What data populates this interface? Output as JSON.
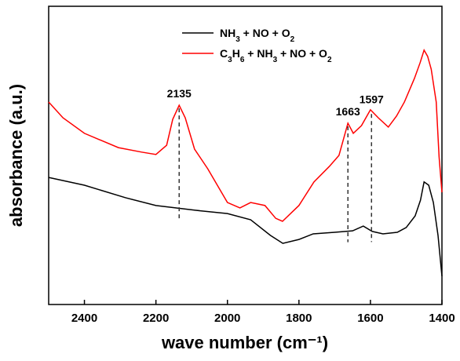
{
  "chart_data": {
    "type": "line",
    "xlabel": "wave number (cm⁻¹)",
    "ylabel": "absorbance (a.u.)",
    "xlim": [
      2500,
      1400
    ],
    "xticks": [
      2400,
      2200,
      2000,
      1800,
      1600,
      1400
    ],
    "ylim": [
      0,
      100
    ],
    "legend": "upper center",
    "annotations": [
      2135,
      1663,
      1597
    ],
    "series": [
      {
        "name": "NH3 + NO + O2",
        "color": "#000000",
        "x": [
          2500,
          2400,
          2285,
          2200,
          2090,
          2000,
          1935,
          1880,
          1845,
          1800,
          1760,
          1700,
          1650,
          1620,
          1595,
          1565,
          1525,
          1500,
          1475,
          1460,
          1450,
          1437,
          1424,
          1411,
          1400
        ],
        "values": [
          42.6,
          40.0,
          35.8,
          33.2,
          31.6,
          30.5,
          28.4,
          23.2,
          20.5,
          21.8,
          23.7,
          24.2,
          24.7,
          26.3,
          24.5,
          23.7,
          24.2,
          25.8,
          29.7,
          35.0,
          41.1,
          40.0,
          34.2,
          23.2,
          9.5
        ]
      },
      {
        "name": "C3H6 + NH3 + NO + O2",
        "color": "#ff0000",
        "x": [
          2500,
          2460,
          2400,
          2305,
          2240,
          2200,
          2170,
          2153,
          2135,
          2118,
          2092,
          2055,
          2000,
          1965,
          1935,
          1895,
          1865,
          1846,
          1800,
          1758,
          1715,
          1688,
          1663,
          1648,
          1625,
          1600,
          1578,
          1550,
          1527,
          1505,
          1477,
          1461,
          1450,
          1440,
          1430,
          1416,
          1408,
          1400
        ],
        "values": [
          67.9,
          62.6,
          57.4,
          52.6,
          51.1,
          50.3,
          53.4,
          62.1,
          66.8,
          62.6,
          52.1,
          45.5,
          34.2,
          32.4,
          34.2,
          33.2,
          28.9,
          27.9,
          33.2,
          41.1,
          46.3,
          50.0,
          60.8,
          57.4,
          60.0,
          65.3,
          62.6,
          59.5,
          63.2,
          67.9,
          75.8,
          81.1,
          85.3,
          83.2,
          78.9,
          67.9,
          49.5,
          37.6
        ]
      }
    ]
  }
}
